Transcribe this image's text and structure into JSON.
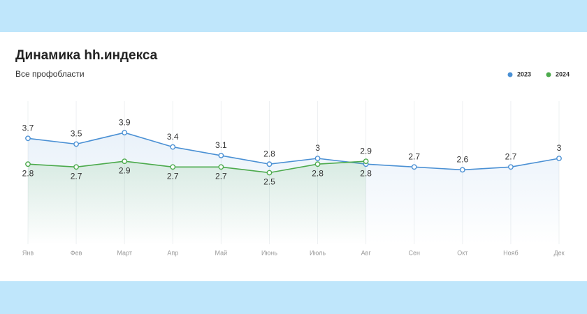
{
  "chart_data": {
    "type": "line",
    "title": "Динамика hh.индекса",
    "subtitle": "Все профобласти",
    "categories": [
      "Янв",
      "Фев",
      "Март",
      "Апр",
      "Май",
      "Июнь",
      "Июль",
      "Авг",
      "Сен",
      "Окт",
      "Нояб",
      "Дек"
    ],
    "series": [
      {
        "name": "2023",
        "color": "#4a90d4",
        "values": [
          3.7,
          3.5,
          3.9,
          3.4,
          3.1,
          2.8,
          3,
          2.8,
          2.7,
          2.6,
          2.7,
          3
        ]
      },
      {
        "name": "2024",
        "color": "#4caa4c",
        "values": [
          2.8,
          2.7,
          2.9,
          2.7,
          2.7,
          2.5,
          2.8,
          2.9,
          null,
          null,
          null,
          null
        ]
      }
    ],
    "ylim": [
      0,
      5
    ],
    "legend": "top-right",
    "grid": true
  }
}
